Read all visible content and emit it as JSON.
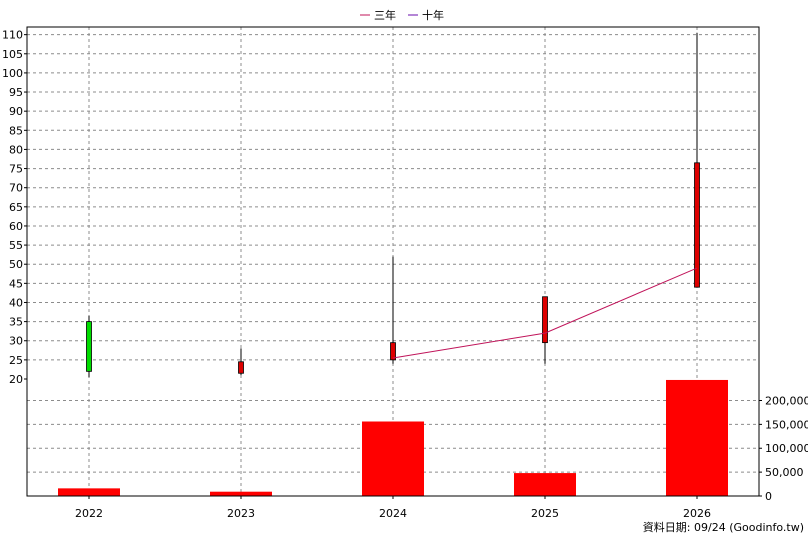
{
  "legend": {
    "items": [
      {
        "label": "三年",
        "color": "#c0145a"
      },
      {
        "label": "十年",
        "color": "#6a0dad"
      }
    ]
  },
  "footer": {
    "text": "資料日期: 09/24  (Goodinfo.tw)"
  },
  "chart_data": {
    "type": "candlestick+line+bar",
    "categories": [
      "2022",
      "2023",
      "2024",
      "2025",
      "2026"
    ],
    "price_axis": {
      "ylim": [
        20,
        112
      ],
      "ticks": [
        20,
        25,
        30,
        35,
        40,
        45,
        50,
        55,
        60,
        65,
        70,
        75,
        80,
        85,
        90,
        95,
        100,
        105,
        110
      ]
    },
    "volume_axis": {
      "ylim": [
        0,
        245000
      ],
      "ticks": [
        0,
        50000,
        100000,
        150000,
        200000
      ],
      "tick_labels": [
        "0",
        "50,000",
        "100,000",
        "150,000",
        "200,000"
      ]
    },
    "candles": [
      {
        "x": "2022",
        "open": 22,
        "close": 35,
        "high": 36.5,
        "low": 20.5,
        "color": "#00dd00"
      },
      {
        "x": "2023",
        "open": 24.5,
        "close": 21.5,
        "high": 28,
        "low": 21,
        "color": "#dd0000"
      },
      {
        "x": "2024",
        "open": 25,
        "close": 29.5,
        "high": 52,
        "low": 24,
        "color": "#dd0000"
      },
      {
        "x": "2025",
        "open": 29.5,
        "close": 41.5,
        "high": 41.5,
        "low": 24,
        "color": "#dd0000"
      },
      {
        "x": "2026",
        "open": 44,
        "close": 76.5,
        "high": 110.5,
        "low": 44,
        "color": "#dd0000"
      }
    ],
    "series": [
      {
        "name": "三年",
        "color": "#c0145a",
        "points": [
          {
            "x": "2024",
            "y": 25.5
          },
          {
            "x": "2025",
            "y": 32
          },
          {
            "x": "2026",
            "y": 49
          }
        ]
      }
    ],
    "volume": [
      16000,
      9000,
      156000,
      48000,
      243000
    ],
    "volume_color": "#ff0000",
    "grid": true
  }
}
